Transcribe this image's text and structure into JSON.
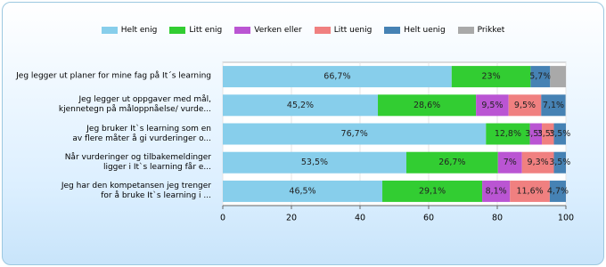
{
  "chart_data": {
    "type": "stacked-bar-horizontal",
    "categories": [
      "Jeg legger ut planer for mine fag på It´s learning",
      "Jeg legger ut oppgaver med mål,\nkjennetegn på måloppnåelse/ vurde...",
      "Jeg bruker It`s learning som en\nav flere måter å gi vurderinger o...",
      "Når vurderinger og tilbakemeldinger\nligger i It`s learning  får e...",
      "Jeg har den kompetansen jeg trenger\nfor å bruke  It`s learning i ..."
    ],
    "series": [
      {
        "name": "Helt enig",
        "color": "#87ceeb",
        "values": [
          66.7,
          45.2,
          76.7,
          53.5,
          46.5
        ],
        "value_labels": [
          "66,7%",
          "45,2%",
          "76,7%",
          "53,5%",
          "46,5%"
        ]
      },
      {
        "name": "Litt enig",
        "color": "#32cd32",
        "values": [
          23,
          28.6,
          12.8,
          26.7,
          29.1
        ],
        "value_labels": [
          "23%",
          "28,6%",
          "12,8%",
          "26,7%",
          "29,1%"
        ]
      },
      {
        "name": "Verken eller",
        "color": "#ba55d3",
        "values": [
          0,
          9.5,
          3.5,
          7,
          8.1
        ],
        "value_labels": [
          null,
          "9,5%",
          "3,5%",
          "7%",
          "8,1%"
        ]
      },
      {
        "name": "Litt uenig",
        "color": "#f08080",
        "values": [
          0,
          9.5,
          3.5,
          9.3,
          11.6
        ],
        "value_labels": [
          null,
          "9,5%",
          "3,5%",
          "9,3%",
          "11,6%"
        ]
      },
      {
        "name": "Helt uenig",
        "color": "#4682b4",
        "values": [
          5.7,
          7.1,
          3.5,
          3.5,
          4.7
        ],
        "value_labels": [
          "5,7%",
          "7,1%",
          "3,5%",
          "3,5%",
          "4,7%"
        ]
      },
      {
        "name": "Prikket",
        "color": "#a9a9a9",
        "values": [
          4.6,
          0,
          0,
          0,
          0
        ],
        "value_labels": [
          null,
          null,
          null,
          null,
          null
        ]
      }
    ],
    "xlim": [
      0,
      100
    ],
    "xticks": [
      0,
      20,
      40,
      60,
      80,
      100
    ],
    "grid": true
  }
}
